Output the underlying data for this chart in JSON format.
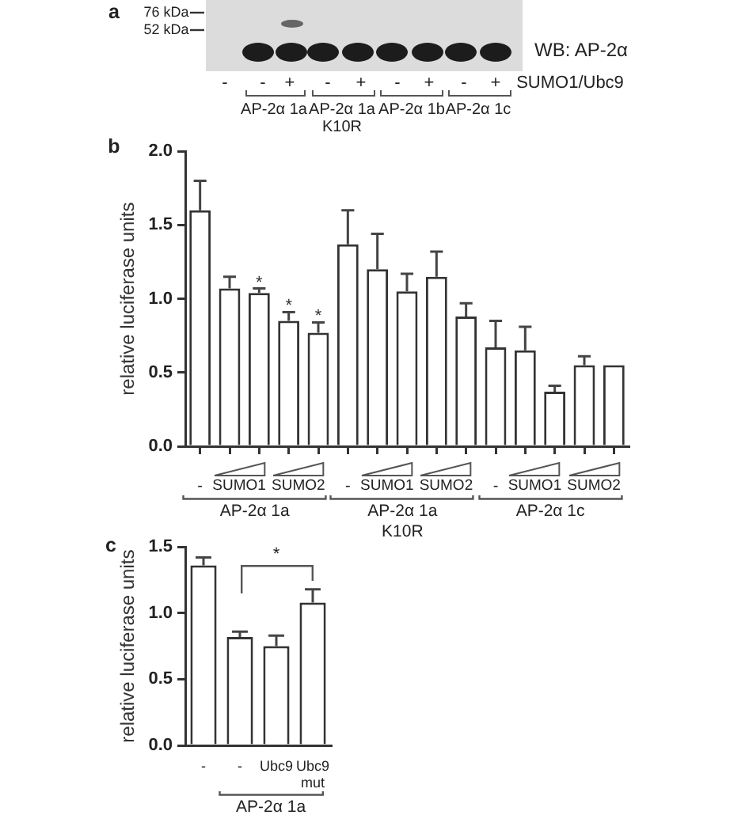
{
  "chart_data": [
    {
      "type": "other",
      "title": "a",
      "annotations": [
        "76 kDa",
        "52 kDa",
        "WB: AP-2α",
        "-",
        "-",
        "+",
        "-",
        "+",
        "-",
        "+",
        "-",
        "+",
        "SUMO1/Ubc9",
        "AP-2α 1a",
        "AP-2α 1a\nK10R",
        "AP-2α 1b",
        "AP-2α 1c"
      ]
    },
    {
      "type": "bar",
      "title": "b",
      "ylabel": "relative luciferase units",
      "categories": [
        "-",
        null,
        null,
        null,
        null,
        "-",
        null,
        null,
        null,
        null,
        "-",
        null,
        null,
        null,
        null
      ],
      "values": [
        1.6,
        1.07,
        1.04,
        0.85,
        0.77,
        1.37,
        1.2,
        1.05,
        1.15,
        0.88,
        0.67,
        0.65,
        0.37,
        0.55,
        0.55
      ],
      "errors": [
        [
          1.6,
          1.8
        ],
        [
          1.07,
          1.15
        ],
        [
          1.04,
          1.07
        ],
        [
          0.85,
          0.91
        ],
        [
          0.77,
          0.84
        ],
        [
          1.37,
          1.6
        ],
        [
          1.2,
          1.44
        ],
        [
          1.05,
          1.17
        ],
        [
          1.15,
          1.32
        ],
        [
          0.88,
          0.97
        ],
        [
          0.67,
          0.85
        ],
        [
          0.65,
          0.81
        ],
        [
          0.37,
          0.41
        ],
        [
          0.55,
          0.61
        ],
        null
      ],
      "value_labels": [
        null,
        null,
        "*",
        "*",
        "*",
        null,
        null,
        null,
        null,
        null,
        null,
        null,
        null,
        null,
        null
      ],
      "color": "#ffffff",
      "ylim": [
        0,
        2
      ],
      "yticks": [
        {
          "value": 0,
          "label": "0.0"
        },
        {
          "value": 0.5,
          "label": "0.5"
        },
        {
          "value": 1,
          "label": "1.0"
        },
        {
          "value": 1.5,
          "label": "1.5"
        },
        {
          "value": 2,
          "label": "2.0"
        }
      ],
      "annotations": [
        "SUMO1",
        "SUMO2",
        "SUMO1",
        "SUMO2",
        "SUMO1",
        "SUMO2",
        "AP-2α 1a",
        "AP-2α 1a\nK10R",
        "AP-2α 1c"
      ]
    },
    {
      "type": "bar",
      "title": "c",
      "ylabel": "relative luciferase units",
      "categories": [
        "-",
        "-",
        "Ubc9",
        "Ubc9\nmut"
      ],
      "values": [
        1.36,
        0.82,
        0.75,
        1.08
      ],
      "errors": [
        [
          1.36,
          1.42
        ],
        [
          0.82,
          0.86
        ],
        [
          0.75,
          0.83
        ],
        [
          1.08,
          1.18
        ]
      ],
      "color": "#ffffff",
      "ylim": [
        0,
        1.5
      ],
      "yticks": [
        {
          "value": 0,
          "label": "0.0"
        },
        {
          "value": 0.5,
          "label": "0.5"
        },
        {
          "value": 1,
          "label": "1.0"
        },
        {
          "value": 1.5,
          "label": "1.5"
        }
      ],
      "annotations": [
        "*",
        "AP-2α 1a"
      ]
    }
  ]
}
